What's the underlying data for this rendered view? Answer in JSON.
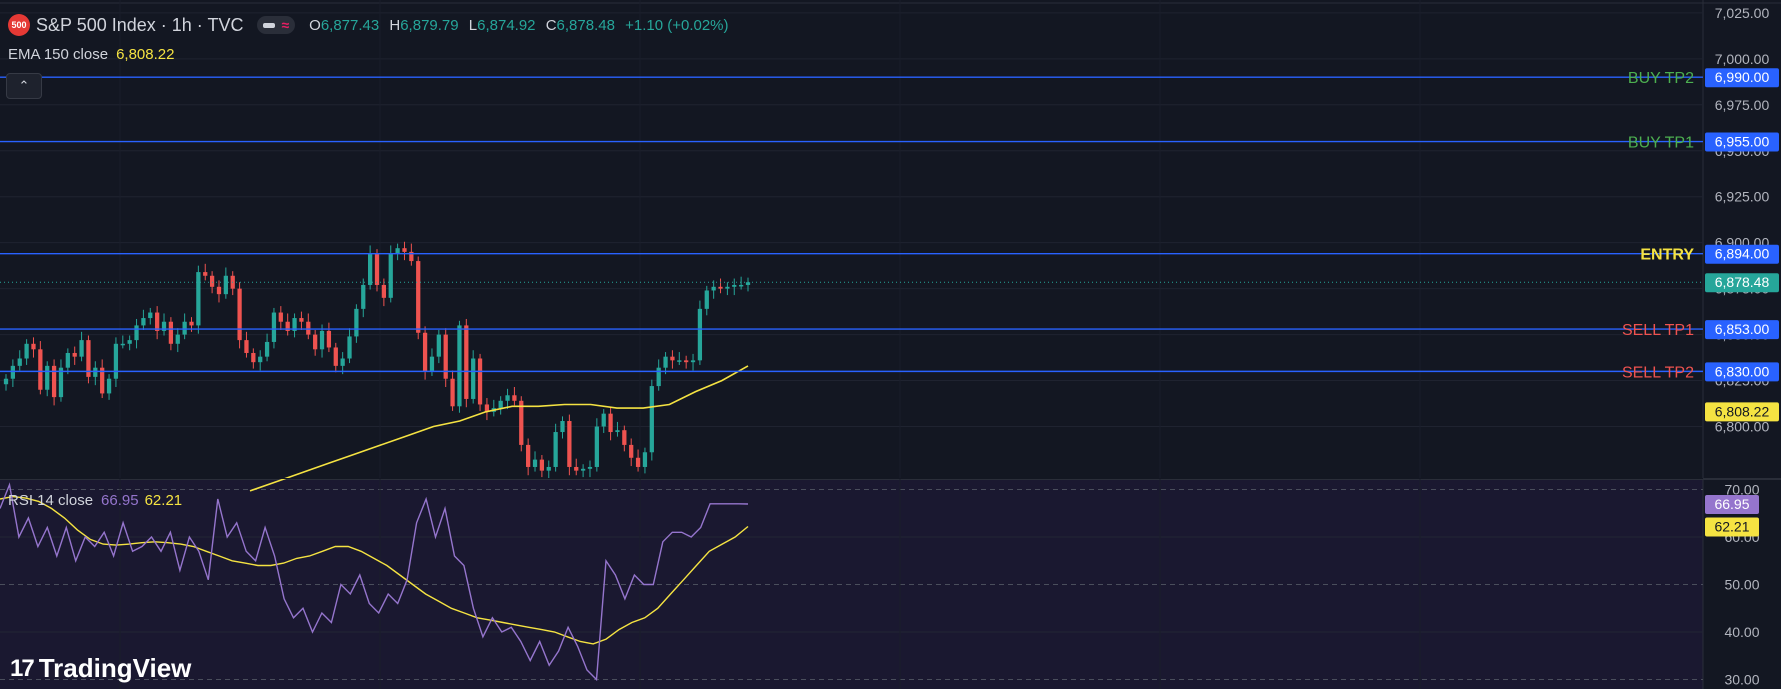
{
  "header": {
    "symbol_badge": "500",
    "title": "S&P 500 Index · 1h · TVC",
    "ohlc": [
      {
        "key": "O",
        "value": "6,877.43"
      },
      {
        "key": "H",
        "value": "6,879.79"
      },
      {
        "key": "L",
        "value": "6,874.92"
      },
      {
        "key": "C",
        "value": "6,878.48"
      }
    ],
    "change": "+1.10 (+0.02%)"
  },
  "ema_legend": {
    "label": "EMA 150 close",
    "value": "6,808.22"
  },
  "rsi_legend": {
    "label": "RSI 14 close",
    "value": "66.95",
    "ma_value": "62.21"
  },
  "brand": {
    "name": "TradingView",
    "logo_icon": "tradingview-logo-icon"
  },
  "collapse_icon": "chevron-up-icon",
  "colors": {
    "background": "#131722",
    "up": "#26a69a",
    "down": "#ef5350",
    "level_line": "#2962ff",
    "ema": "#f5e342",
    "rsi": "#9575cd",
    "rsi_ma": "#f5e342",
    "buy_label": "#4caf50",
    "sell_label": "#ef5350",
    "entry_label": "#f5e342"
  },
  "chart_data": [
    {
      "type": "candlestick",
      "title": "S&P 500 Index · 1h · TVC",
      "ylim": [
        6772,
        7032
      ],
      "y_ticks": [
        "7,025.00",
        "7,000.00",
        "6,975.00",
        "6,950.00",
        "6,925.00",
        "6,900.00",
        "6,875.00",
        "6,850.00",
        "6,825.00",
        "6,800.00"
      ],
      "y_tick_values": [
        7025,
        7000,
        6975,
        6950,
        6925,
        6900,
        6875,
        6850,
        6825,
        6800
      ],
      "levels": [
        {
          "name": "BUY TP2",
          "price": 6990.0,
          "label": "BUY TP2",
          "price_label": "6,990.00",
          "kind": "buy"
        },
        {
          "name": "BUY TP1",
          "price": 6955.0,
          "label": "BUY TP1",
          "price_label": "6,955.00",
          "kind": "buy"
        },
        {
          "name": "ENTRY",
          "price": 6894.0,
          "label": "ENTRY",
          "price_label": "6,894.00",
          "kind": "entry"
        },
        {
          "name": "SELL TP1",
          "price": 6853.0,
          "label": "SELL TP1",
          "price_label": "6,853.00",
          "kind": "sell"
        },
        {
          "name": "SELL TP2",
          "price": 6830.0,
          "label": "SELL TP2",
          "price_label": "6,830.00",
          "kind": "sell"
        }
      ],
      "last_price": {
        "value": 6878.48,
        "label": "6,878.48"
      },
      "ema": {
        "label": "EMA 150 close",
        "value": 6808.22,
        "value_label": "6,808.22",
        "values": [
          6765,
          6770,
          6775,
          6780,
          6785,
          6790,
          6795,
          6800,
          6803,
          6808,
          6811,
          6811,
          6812,
          6812,
          6810,
          6810,
          6812,
          6819,
          6825,
          6833
        ]
      },
      "closes": [
        6826,
        6833,
        6837,
        6845,
        6842,
        6820,
        6833,
        6816,
        6832,
        6840,
        6838,
        6847,
        6827,
        6832,
        6818,
        6826,
        6845,
        6845,
        6847,
        6855,
        6859,
        6862,
        6852,
        6857,
        6845,
        6850,
        6857,
        6855,
        6884,
        6882,
        6876,
        6872,
        6882,
        6875,
        6847,
        6840,
        6835,
        6838,
        6846,
        6862,
        6857,
        6852,
        6859,
        6857,
        6850,
        6842,
        6852,
        6843,
        6833,
        6837,
        6849,
        6864,
        6877,
        6894,
        6877,
        6870,
        6894,
        6897,
        6895,
        6890,
        6851,
        6830,
        6838,
        6850,
        6826,
        6811,
        6855,
        6815,
        6837,
        6812,
        6808,
        6810,
        6814,
        6817,
        6814,
        6790,
        6778,
        6782,
        6776,
        6778,
        6797,
        6803,
        6778,
        6776,
        6777,
        6778,
        6800,
        6807,
        6797,
        6798,
        6790,
        6783,
        6778,
        6786,
        6822,
        6832,
        6838,
        6836,
        6836,
        6835,
        6836,
        6864,
        6874,
        6876,
        6875,
        6876,
        6877,
        6877,
        6878.48
      ]
    },
    {
      "type": "line",
      "title": "RSI 14 close",
      "ylim": [
        28,
        72
      ],
      "y_ticks": [
        "70.00",
        "60.00",
        "50.00",
        "40.00",
        "30.00"
      ],
      "y_tick_values": [
        70,
        60,
        50,
        40,
        30
      ],
      "dashed_levels": [
        70,
        50,
        30
      ],
      "series": [
        {
          "name": "RSI 14 close",
          "value_label": "66.95",
          "values": [
            66,
            71,
            60,
            64,
            58,
            62,
            56,
            62,
            55,
            60,
            58,
            61,
            56,
            63,
            57,
            58,
            60,
            57,
            61,
            53,
            60,
            57,
            51,
            68,
            60,
            63,
            57,
            55,
            62,
            56,
            47,
            43,
            45,
            40,
            44,
            42,
            50,
            48,
            52,
            46,
            44,
            48,
            46,
            51,
            63,
            68,
            60,
            66,
            56,
            54,
            45,
            39,
            43,
            40,
            41,
            38,
            34,
            38,
            33,
            36,
            41,
            37,
            32,
            30,
            55,
            52,
            47,
            52,
            50,
            50,
            59,
            61,
            61,
            60,
            62,
            67,
            67,
            67,
            67,
            66.95
          ]
        },
        {
          "name": "RSI MA",
          "value_label": "62.21",
          "values": [
            68,
            68.5,
            68.2,
            67.5,
            66,
            64,
            61.5,
            59.5,
            58.5,
            58.3,
            58.5,
            58.8,
            59,
            58.8,
            58.5,
            58,
            57,
            56,
            55,
            54.5,
            54,
            54,
            54.5,
            55.5,
            56,
            57,
            58,
            58,
            57,
            55.5,
            54,
            52,
            50,
            48,
            46.5,
            45,
            44,
            43,
            42.5,
            42,
            41.5,
            41,
            40.5,
            40,
            39,
            38,
            37.5,
            38.5,
            40.5,
            42,
            43,
            45,
            48,
            51,
            54,
            57,
            58.5,
            60,
            62.21
          ]
        }
      ]
    }
  ]
}
